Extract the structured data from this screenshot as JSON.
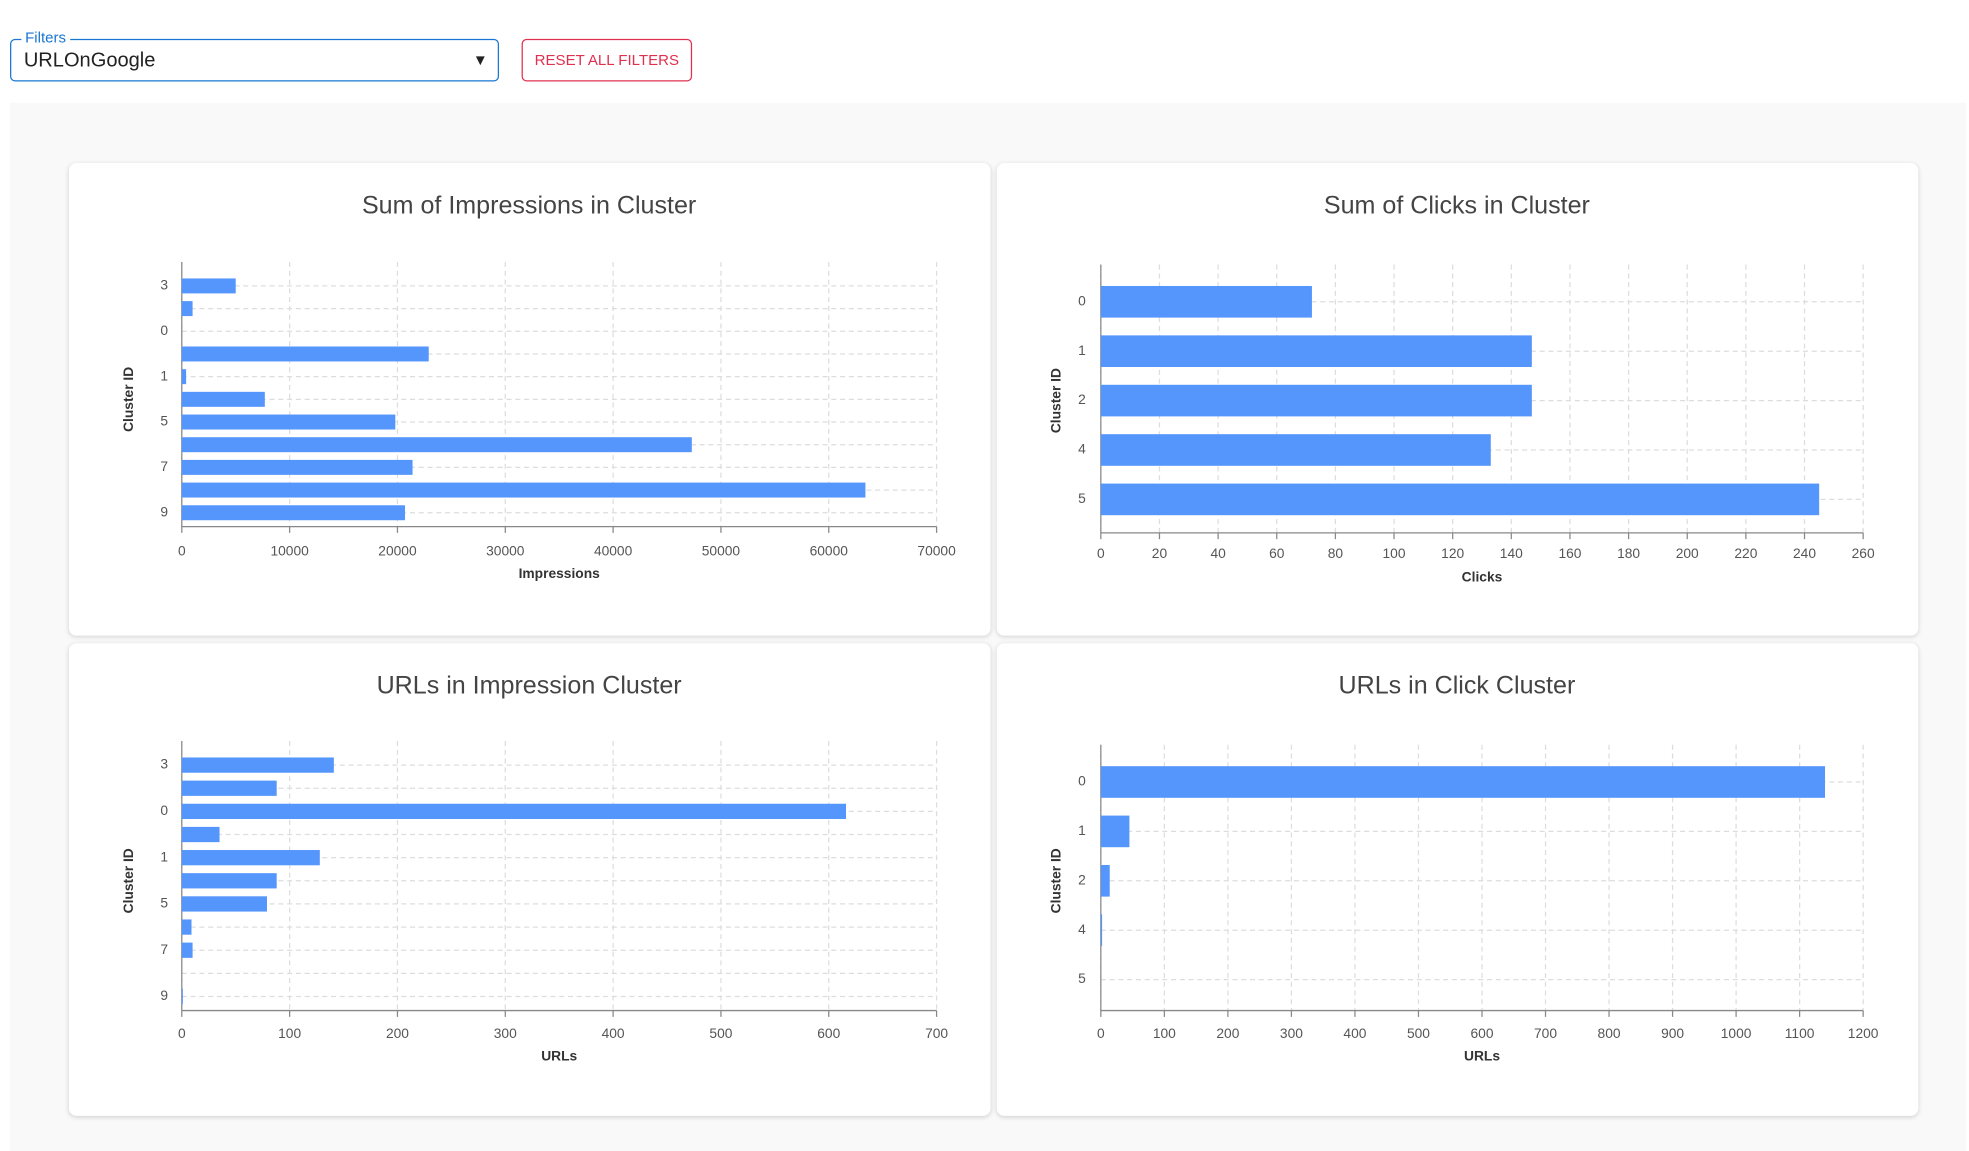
{
  "filters": {
    "label": "Filters",
    "value": "URLOnGoogle",
    "reset": "RESET ALL FILTERS"
  },
  "chart_data": [
    {
      "type": "bar",
      "orientation": "horizontal",
      "title": "Sum of Impressions in Cluster",
      "x_label": "Impressions",
      "y_label": "Cluster ID",
      "categories": [
        "3",
        null,
        "0",
        null,
        "1",
        null,
        "5",
        null,
        "7",
        null,
        "9"
      ],
      "values": [
        5000,
        1000,
        0,
        22900,
        400,
        7700,
        19800,
        47300,
        21400,
        63400,
        20700
      ],
      "xlim": [
        0,
        70000
      ],
      "xticks": [
        0,
        10000,
        20000,
        30000,
        40000,
        50000,
        60000,
        70000
      ],
      "color": "#5596fd",
      "grid": true
    },
    {
      "type": "bar",
      "orientation": "horizontal",
      "title": "Sum of Clicks in Cluster",
      "x_label": "Clicks",
      "y_label": "Cluster ID",
      "categories": [
        "0",
        "1",
        "2",
        "4",
        "5"
      ],
      "values": [
        72,
        147,
        147,
        133,
        245
      ],
      "xlim": [
        0,
        260
      ],
      "xticks": [
        0,
        20,
        40,
        60,
        80,
        100,
        120,
        140,
        160,
        180,
        200,
        220,
        240,
        260
      ],
      "color": "#5596fd",
      "grid": true
    },
    {
      "type": "bar",
      "orientation": "horizontal",
      "title": "URLs in Impression Cluster",
      "x_label": "URLs",
      "y_label": "Cluster ID",
      "categories": [
        "3",
        null,
        "0",
        null,
        "1",
        null,
        "5",
        null,
        "7",
        null,
        "9"
      ],
      "values": [
        141,
        88,
        616,
        35,
        128,
        88,
        79,
        9,
        10,
        0,
        1
      ],
      "xlim": [
        0,
        700
      ],
      "xticks": [
        0,
        100,
        200,
        300,
        400,
        500,
        600,
        700
      ],
      "color": "#5596fd",
      "grid": true
    },
    {
      "type": "bar",
      "orientation": "horizontal",
      "title": "URLs in Click Cluster",
      "x_label": "URLs",
      "y_label": "Cluster ID",
      "categories": [
        "0",
        "1",
        "2",
        "4",
        "5"
      ],
      "values": [
        1140,
        45,
        14,
        2,
        0
      ],
      "xlim": [
        0,
        1200
      ],
      "xticks": [
        0,
        100,
        200,
        300,
        400,
        500,
        600,
        700,
        800,
        900,
        1000,
        1100,
        1200
      ],
      "color": "#5596fd",
      "grid": true
    }
  ]
}
